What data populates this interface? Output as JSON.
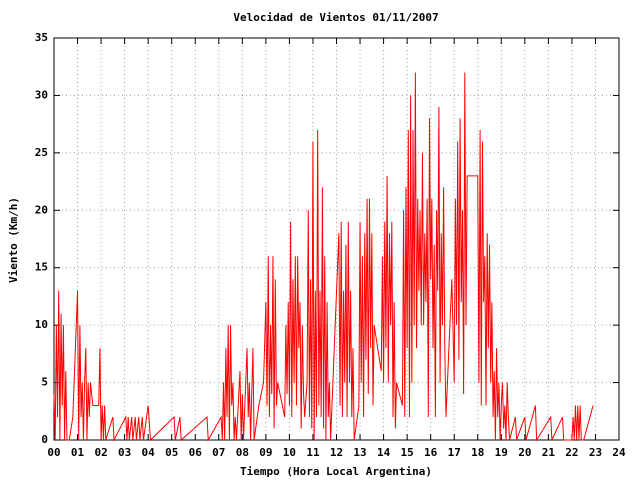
{
  "chart_data": {
    "type": "line",
    "title": "Velocidad de Vientos 01/11/2007",
    "x_label": "Tiempo (Hora Local Argentina)",
    "y_label": "Viento (Km/h)",
    "xlim": [
      0,
      24
    ],
    "ylim": [
      0,
      35
    ],
    "xticks": [
      {
        "value": 0,
        "label": "00"
      },
      {
        "value": 1,
        "label": "01"
      },
      {
        "value": 2,
        "label": "02"
      },
      {
        "value": 3,
        "label": "03"
      },
      {
        "value": 4,
        "label": "04"
      },
      {
        "value": 5,
        "label": "05"
      },
      {
        "value": 6,
        "label": "06"
      },
      {
        "value": 7,
        "label": "07"
      },
      {
        "value": 8,
        "label": "08"
      },
      {
        "value": 9,
        "label": "09"
      },
      10,
      11,
      12,
      13,
      14,
      15,
      16,
      17,
      18,
      19,
      20,
      21,
      22,
      23,
      24
    ],
    "yticks": [
      0,
      5,
      10,
      15,
      20,
      25,
      30,
      35
    ],
    "grid": true,
    "color": "#ff0000",
    "x": [
      0,
      0.05,
      0.1,
      0.15,
      0.2,
      0.25,
      0.3,
      0.35,
      0.4,
      0.45,
      0.5,
      0.55,
      0.65,
      0.8,
      1.0,
      1.05,
      1.1,
      1.15,
      1.2,
      1.25,
      1.3,
      1.35,
      1.4,
      1.45,
      1.5,
      1.55,
      1.65,
      1.9,
      1.95,
      2.0,
      2.05,
      2.1,
      2.15,
      2.2,
      2.5,
      2.55,
      3.05,
      3.1,
      3.15,
      3.2,
      3.3,
      3.35,
      3.45,
      3.5,
      3.6,
      3.65,
      3.75,
      3.8,
      4.0,
      4.1,
      5.1,
      5.15,
      5.35,
      5.4,
      6.5,
      6.55,
      7.1,
      7.15,
      7.2,
      7.25,
      7.3,
      7.35,
      7.4,
      7.45,
      7.5,
      7.55,
      7.6,
      7.65,
      7.7,
      7.75,
      7.9,
      7.95,
      8.0,
      8.05,
      8.2,
      8.25,
      8.3,
      8.35,
      8.45,
      8.5,
      8.7,
      8.9,
      9.0,
      9.05,
      9.1,
      9.15,
      9.2,
      9.25,
      9.3,
      9.35,
      9.4,
      9.45,
      9.5,
      9.8,
      9.85,
      9.9,
      9.95,
      10.0,
      10.05,
      10.1,
      10.15,
      10.2,
      10.25,
      10.3,
      10.35,
      10.4,
      10.45,
      10.5,
      10.55,
      10.6,
      10.65,
      10.75,
      10.8,
      10.85,
      10.9,
      10.95,
      11.0,
      11.05,
      11.1,
      11.15,
      11.2,
      11.25,
      11.3,
      11.35,
      11.4,
      11.45,
      11.5,
      11.55,
      11.6,
      11.65,
      11.7,
      11.75,
      12.1,
      12.15,
      12.2,
      12.25,
      12.3,
      12.35,
      12.4,
      12.45,
      12.5,
      12.55,
      12.6,
      12.65,
      12.7,
      12.75,
      12.95,
      13.0,
      13.05,
      13.1,
      13.15,
      13.2,
      13.25,
      13.3,
      13.35,
      13.4,
      13.45,
      13.5,
      13.55,
      13.6,
      13.9,
      13.95,
      14.0,
      14.05,
      14.1,
      14.15,
      14.2,
      14.25,
      14.3,
      14.35,
      14.4,
      14.45,
      14.5,
      14.55,
      14.8,
      14.85,
      14.9,
      14.95,
      15.0,
      15.05,
      15.1,
      15.15,
      15.2,
      15.25,
      15.3,
      15.35,
      15.4,
      15.45,
      15.5,
      15.55,
      15.6,
      15.65,
      15.7,
      15.75,
      15.8,
      15.85,
      15.9,
      15.95,
      16.0,
      16.05,
      16.1,
      16.15,
      16.2,
      16.25,
      16.3,
      16.35,
      16.4,
      16.45,
      16.5,
      16.55,
      16.6,
      16.65,
      16.9,
      17.0,
      17.05,
      17.1,
      17.15,
      17.2,
      17.25,
      17.3,
      17.35,
      17.4,
      17.45,
      17.5,
      17.55,
      17.6,
      18.0,
      18.05,
      18.1,
      18.15,
      18.2,
      18.25,
      18.3,
      18.35,
      18.4,
      18.45,
      18.5,
      18.55,
      18.6,
      18.65,
      18.7,
      18.75,
      18.8,
      18.85,
      18.9,
      18.95,
      19.0,
      19.05,
      19.1,
      19.15,
      19.2,
      19.25,
      19.3,
      19.35,
      19.6,
      19.65,
      20.0,
      20.05,
      20.45,
      20.5,
      21.1,
      21.15,
      21.6,
      21.65,
      22.0,
      22.05,
      22.1,
      22.15,
      22.2,
      22.25,
      22.3,
      22.35,
      22.4,
      22.5,
      22.9
    ],
    "values": [
      4,
      0,
      10,
      2,
      13,
      0,
      11,
      3,
      10,
      0,
      6,
      0,
      0,
      2,
      13,
      0,
      10,
      2,
      5,
      0,
      5,
      8,
      0,
      5,
      2,
      5,
      3,
      3,
      8,
      0,
      3,
      0,
      3,
      0,
      2,
      0,
      2,
      0,
      2,
      0,
      2,
      0,
      2,
      0,
      2,
      0,
      2,
      0,
      3,
      0,
      2,
      0,
      2,
      0,
      2,
      0,
      2,
      0,
      5,
      0,
      8,
      2,
      10,
      0,
      10,
      3,
      5,
      0,
      2,
      0,
      6,
      0,
      4,
      0,
      8,
      2,
      5,
      0,
      8,
      0,
      3,
      5,
      12,
      3,
      16,
      2,
      10,
      4,
      16,
      1,
      14,
      3,
      5,
      2,
      10,
      4,
      12,
      3,
      19,
      2,
      14,
      5,
      16,
      3,
      16,
      8,
      12,
      1,
      10,
      4,
      2,
      5,
      20,
      2,
      14,
      1,
      26,
      0,
      13,
      2,
      27,
      3,
      13,
      2,
      22,
      1,
      16,
      0,
      12,
      2,
      5,
      0,
      18,
      3,
      19,
      2,
      13,
      5,
      17,
      2,
      19,
      5,
      13,
      2,
      8,
      0,
      3,
      19,
      5,
      16,
      2,
      18,
      7,
      21,
      4,
      21,
      8,
      18,
      3,
      10,
      6,
      16,
      5,
      19,
      8,
      23,
      5,
      18,
      10,
      19,
      2,
      12,
      1,
      5,
      3,
      20,
      2,
      22,
      8,
      27,
      2,
      30,
      5,
      27,
      10,
      32,
      8,
      21,
      13,
      20,
      10,
      25,
      10,
      18,
      12,
      21,
      2,
      28,
      14,
      21,
      8,
      17,
      2,
      20,
      13,
      29,
      5,
      18,
      10,
      22,
      8,
      2,
      14,
      5,
      21,
      10,
      26,
      7,
      28,
      12,
      20,
      4,
      32,
      10,
      23,
      23,
      23,
      5,
      27,
      3,
      26,
      12,
      16,
      3,
      18,
      8,
      17,
      5,
      12,
      2,
      6,
      0,
      8,
      2,
      5,
      0,
      3,
      5,
      1,
      3,
      0,
      5,
      2,
      0,
      2,
      0,
      2,
      0,
      3,
      0,
      2,
      0,
      2,
      0,
      0,
      2,
      0,
      3,
      0,
      3,
      0,
      3,
      0,
      0,
      3
    ]
  }
}
